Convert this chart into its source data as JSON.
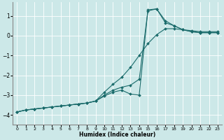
{
  "bg_color": "#cce8e8",
  "grid_color": "#ffffff",
  "line_color": "#1a6b6b",
  "marker": "D",
  "markersize": 2.0,
  "xlabel": "Humidex (Indice chaleur)",
  "xlim": [
    -0.5,
    23.5
  ],
  "ylim": [
    -4.5,
    1.7
  ],
  "xticks": [
    0,
    1,
    2,
    3,
    4,
    5,
    6,
    7,
    8,
    9,
    10,
    11,
    12,
    13,
    14,
    15,
    16,
    17,
    18,
    19,
    20,
    21,
    22,
    23
  ],
  "yticks": [
    -4,
    -3,
    -2,
    -1,
    0,
    1
  ],
  "series": [
    [
      -3.85,
      -3.75,
      -3.7,
      -3.65,
      -3.6,
      -3.55,
      -3.5,
      -3.45,
      -3.4,
      -3.3,
      -2.85,
      -2.45,
      -2.1,
      -1.6,
      -1.0,
      -0.4,
      0.05,
      0.35,
      0.35,
      0.3,
      0.25,
      0.2,
      0.2,
      0.2
    ],
    [
      -3.85,
      -3.75,
      -3.7,
      -3.65,
      -3.6,
      -3.55,
      -3.5,
      -3.45,
      -3.4,
      -3.3,
      -3.0,
      -2.75,
      -2.6,
      -2.5,
      -2.2,
      1.25,
      1.35,
      0.75,
      0.5,
      0.3,
      0.2,
      0.15,
      0.15,
      0.15
    ],
    [
      -3.85,
      -3.75,
      -3.7,
      -3.65,
      -3.6,
      -3.55,
      -3.5,
      -3.45,
      -3.4,
      -3.3,
      -3.05,
      -2.85,
      -2.75,
      -2.95,
      -3.0,
      1.3,
      1.35,
      0.65,
      0.5,
      0.3,
      0.2,
      0.15,
      0.15,
      0.15
    ]
  ]
}
